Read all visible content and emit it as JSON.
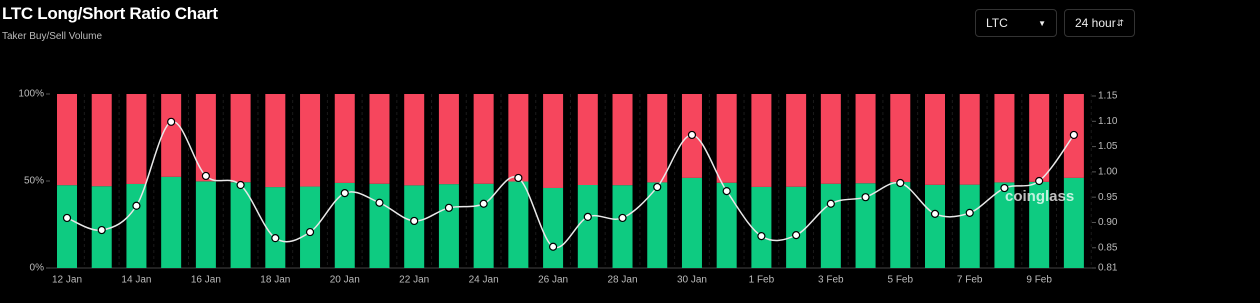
{
  "chart_data": {
    "type": "stacked-bar-line",
    "title": "LTC Long/Short Ratio Chart",
    "subtitle": "Taker Buy/Sell Volume",
    "categories": [
      "12 Jan",
      null,
      "14 Jan",
      null,
      "16 Jan",
      null,
      "18 Jan",
      null,
      "20 Jan",
      null,
      "22 Jan",
      null,
      "24 Jan",
      null,
      "26 Jan",
      null,
      "28 Jan",
      null,
      "30 Jan",
      null,
      "1 Feb",
      null,
      "3 Feb",
      null,
      "5 Feb",
      null,
      "7 Feb",
      null,
      "9 Feb",
      null
    ],
    "series": [
      {
        "color": "#0ecb81",
        "values": [
          47.6,
          47.0,
          48.3,
          52.4,
          49.8,
          49.3,
          46.5,
          46.8,
          48.9,
          48.4,
          47.5,
          48.2,
          48.4,
          49.7,
          46.0,
          47.7,
          47.6,
          49.2,
          51.8,
          49.0,
          46.6,
          46.7,
          48.4,
          48.7,
          49.4,
          47.8,
          47.9,
          49.2,
          49.5,
          51.8
        ]
      },
      {
        "color": "#f6465d",
        "values": [
          52.4,
          53.0,
          51.7,
          47.6,
          50.2,
          50.7,
          53.5,
          53.2,
          51.1,
          51.6,
          52.5,
          51.8,
          51.6,
          50.3,
          54.0,
          52.3,
          52.4,
          50.8,
          48.2,
          51.0,
          53.4,
          53.3,
          51.6,
          51.3,
          50.6,
          52.2,
          52.1,
          50.8,
          50.5,
          48.2
        ]
      },
      {
        "color": "#e8e8e8",
        "axis": "y2",
        "values": [
          0.909,
          0.885,
          0.933,
          1.099,
          0.992,
          0.974,
          0.869,
          0.881,
          0.958,
          0.939,
          0.903,
          0.929,
          0.937,
          0.988,
          0.852,
          0.911,
          0.909,
          0.97,
          1.073,
          0.962,
          0.873,
          0.875,
          0.937,
          0.95,
          0.978,
          0.917,
          0.919,
          0.968,
          0.982,
          1.073
        ]
      }
    ],
    "ylim": [
      0,
      100
    ],
    "yticks": [
      {
        "value": 0,
        "label": "0%"
      },
      {
        "value": 50,
        "label": "50%"
      },
      {
        "value": 100,
        "label": "100%"
      }
    ],
    "y2lim": [
      0.81,
      1.15
    ],
    "y2ticks": [
      0.81,
      0.85,
      {
        "value": 0.9,
        "label": "0.90"
      },
      0.95,
      {
        "value": 1.0,
        "label": "1.00"
      },
      1.05,
      {
        "value": 1.1,
        "label": "1.10"
      },
      1.15
    ]
  },
  "controls": {
    "coin": "LTC",
    "interval": "24 hour"
  },
  "watermark": "coinglass"
}
